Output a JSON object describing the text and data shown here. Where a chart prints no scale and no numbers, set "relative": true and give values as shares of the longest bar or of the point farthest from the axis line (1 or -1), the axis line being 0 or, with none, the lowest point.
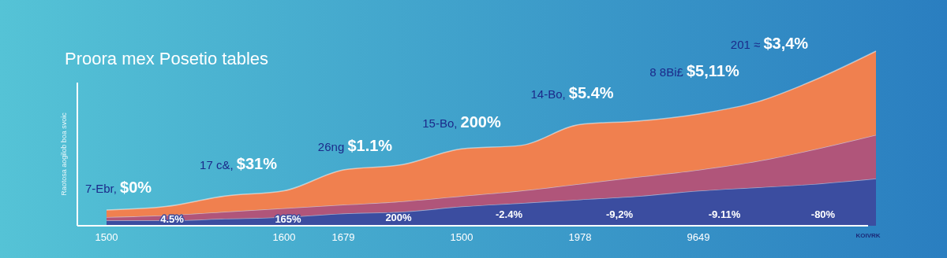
{
  "chart_data": {
    "type": "area",
    "stacked": true,
    "relative": true,
    "title": "Proora mex Posetio tables",
    "ylabel": "Raotosa aogilob boa svoic",
    "categories": [
      "1500",
      null,
      null,
      "1600",
      "1679",
      null,
      "1500",
      null,
      "1978",
      null,
      "9649",
      null,
      null,
      null
    ],
    "series": [
      {
        "color": "#3b4da0",
        "values": [
          0.03,
          0.03,
          0.04,
          0.05,
          0.07,
          0.08,
          0.11,
          0.13,
          0.15,
          0.17,
          0.2,
          0.22,
          0.24,
          0.27
        ]
      },
      {
        "color": "#b0557a",
        "values": [
          0.02,
          0.03,
          0.04,
          0.05,
          0.05,
          0.06,
          0.06,
          0.07,
          0.09,
          0.11,
          0.12,
          0.15,
          0.2,
          0.25
        ]
      },
      {
        "color": "#f0804f",
        "values": [
          0.04,
          0.05,
          0.09,
          0.1,
          0.2,
          0.21,
          0.27,
          0.26,
          0.34,
          0.32,
          0.32,
          0.34,
          0.4,
          0.48
        ]
      }
    ],
    "annotations": [
      "7-Ebr, $0%",
      "17 c&, $31%",
      "26ng $1.1%",
      "15-Bo, 200%",
      "14-Bo, $5.4%",
      "8 8Bi£ $5,11%",
      "201 ≈ $3,4%",
      "4.5%",
      "165%",
      "200%",
      "-2.4%",
      "-9,2%",
      "-9.11%",
      "-80%",
      "KOIVRK"
    ]
  }
}
